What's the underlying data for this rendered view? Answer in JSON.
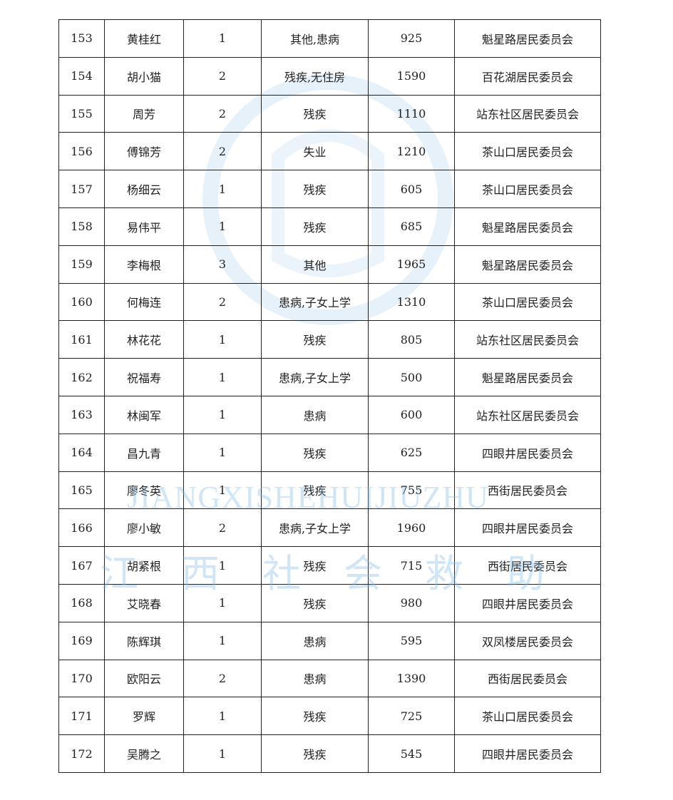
{
  "rows": [
    [
      "153",
      "黄桂红",
      "1",
      "其他,患病",
      "925",
      "魁星路居民委员会"
    ],
    [
      "154",
      "胡小猫",
      "2",
      "残疾,无住房",
      "1590",
      "百花湖居民委员会"
    ],
    [
      "155",
      "周芳",
      "2",
      "残疾",
      "1110",
      "站东社区居民委员会"
    ],
    [
      "156",
      "傅锦芳",
      "2",
      "失业",
      "1210",
      "茶山口居民委员会"
    ],
    [
      "157",
      "杨细云",
      "1",
      "残疾",
      "605",
      "茶山口居民委员会"
    ],
    [
      "158",
      "易伟平",
      "1",
      "残疾",
      "685",
      "魁星路居民委员会"
    ],
    [
      "159",
      "李梅根",
      "3",
      "其他",
      "1965",
      "魁星路居民委员会"
    ],
    [
      "160",
      "何梅连",
      "2",
      "患病,子女上学",
      "1310",
      "茶山口居民委员会"
    ],
    [
      "161",
      "林花花",
      "1",
      "残疾",
      "805",
      "站东社区居民委员会"
    ],
    [
      "162",
      "祝福寿",
      "1",
      "患病,子女上学",
      "500",
      "魁星路居民委员会"
    ],
    [
      "163",
      "林闽军",
      "1",
      "患病",
      "600",
      "站东社区居民委员会"
    ],
    [
      "164",
      "昌九青",
      "1",
      "残疾",
      "625",
      "四眼井居民委员会"
    ],
    [
      "165",
      "廖冬英",
      "1",
      "残疾",
      "755",
      "西街居民委员会"
    ],
    [
      "166",
      "廖小敏",
      "2",
      "患病,子女上学",
      "1960",
      "四眼井居民委员会"
    ],
    [
      "167",
      "胡紧根",
      "1",
      "残疾",
      "715",
      "西街居民委员会"
    ],
    [
      "168",
      "艾晓春",
      "1",
      "残疾",
      "980",
      "四眼井居民委员会"
    ],
    [
      "169",
      "陈辉琪",
      "1",
      "患病",
      "595",
      "双凤楼居民委员会"
    ],
    [
      "170",
      "欧阳云",
      "2",
      "患病",
      "1390",
      "西街居民委员会"
    ],
    [
      "171",
      "罗辉",
      "1",
      "残疾",
      "725",
      "茶山口居民委员会"
    ],
    [
      "172",
      "吴腾之",
      "1",
      "残疾",
      "545",
      "四眼井居民委员会"
    ]
  ],
  "watermark": {
    "latin": "JIANGXISHEHUIJIUZHU",
    "chinese": "江西社会救助",
    "color": "#78b4e1"
  }
}
